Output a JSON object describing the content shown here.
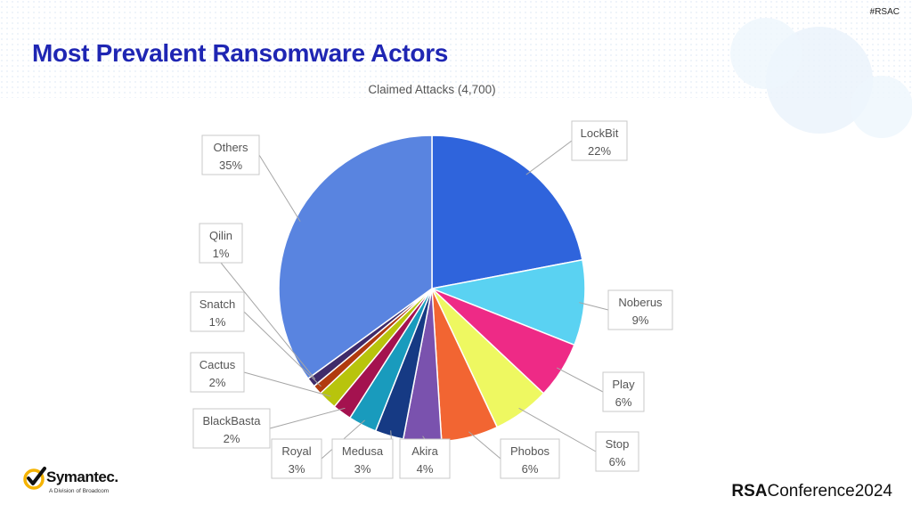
{
  "hashtag": "#RSAC",
  "page_title": "Most Prevalent Ransomware Actors",
  "footer": {
    "symantec": "Symantec.",
    "symantec_sub": "A Division of Broadcom",
    "brand_bold": "RSA",
    "brand_rest": "Conference2024"
  },
  "chart_data": {
    "type": "pie",
    "title": "Claimed Attacks (4,700)",
    "slices": [
      {
        "label": "LockBit",
        "value": 22,
        "display": "22%",
        "color": "#2f64dc"
      },
      {
        "label": "Noberus",
        "value": 9,
        "display": "9%",
        "color": "#5ad2f2"
      },
      {
        "label": "Play",
        "value": 6,
        "display": "6%",
        "color": "#ee2a86"
      },
      {
        "label": "Stop",
        "value": 6,
        "display": "6%",
        "color": "#eef861"
      },
      {
        "label": "Phobos",
        "value": 6,
        "display": "6%",
        "color": "#f26532"
      },
      {
        "label": "Akira",
        "value": 4,
        "display": "4%",
        "color": "#7a52ae"
      },
      {
        "label": "Medusa",
        "value": 3,
        "display": "3%",
        "color": "#163a84"
      },
      {
        "label": "Royal",
        "value": 3,
        "display": "3%",
        "color": "#199bbd"
      },
      {
        "label": "BlackBasta",
        "value": 2,
        "display": "2%",
        "color": "#a4124f"
      },
      {
        "label": "Cactus",
        "value": 2,
        "display": "2%",
        "color": "#b8c40c"
      },
      {
        "label": "Snatch",
        "value": 1,
        "display": "1%",
        "color": "#b13b0f"
      },
      {
        "label": "Qilin",
        "value": 1,
        "display": "1%",
        "color": "#3f2b6a"
      },
      {
        "label": "Others",
        "value": 35,
        "display": "35%",
        "color": "#5984e0"
      }
    ],
    "legend": "none"
  }
}
